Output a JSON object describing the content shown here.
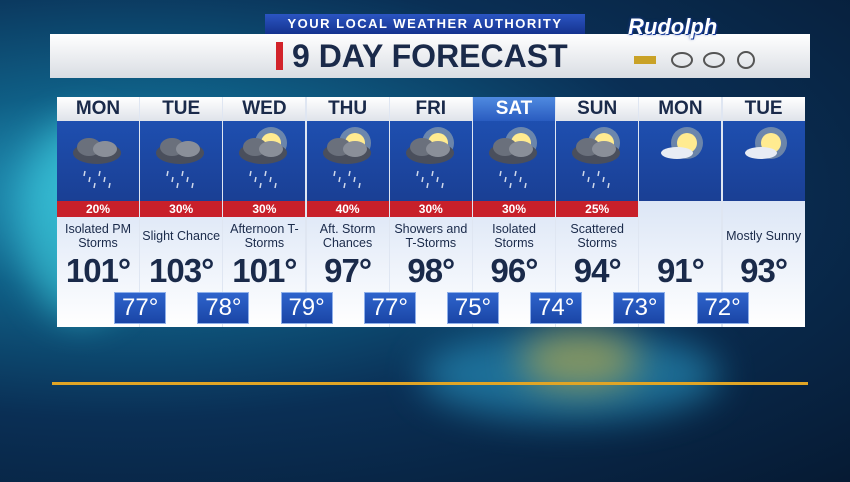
{
  "header": {
    "subtitle": "YOUR LOCAL WEATHER AUTHORITY",
    "title": "9 DAY FORECAST",
    "sponsor": "Rudolph"
  },
  "days": [
    {
      "day": "MON",
      "precip": "20%",
      "desc": "Isolated PM Storms",
      "high": "101°"
    },
    {
      "day": "TUE",
      "precip": "30%",
      "desc": "Slight Chance",
      "high": "103°"
    },
    {
      "day": "WED",
      "precip": "30%",
      "desc": "Afternoon T-Storms",
      "high": "101°"
    },
    {
      "day": "THU",
      "precip": "40%",
      "desc": "Aft. Storm Chances",
      "high": "97°"
    },
    {
      "day": "FRI",
      "precip": "30%",
      "desc": "Showers and T-Storms",
      "high": "98°"
    },
    {
      "day": "SAT",
      "precip": "30%",
      "desc": "Isolated Storms",
      "high": "96°"
    },
    {
      "day": "SUN",
      "precip": "25%",
      "desc": "Scattered Storms",
      "high": "94°"
    },
    {
      "day": "MON",
      "precip": null,
      "desc": null,
      "high": "91°"
    },
    {
      "day": "TUE",
      "precip": null,
      "desc": "Mostly Sunny",
      "high": "93°"
    }
  ],
  "lows": [
    "77°",
    "78°",
    "79°",
    "77°",
    "75°",
    "74°",
    "73°",
    "72°"
  ]
}
